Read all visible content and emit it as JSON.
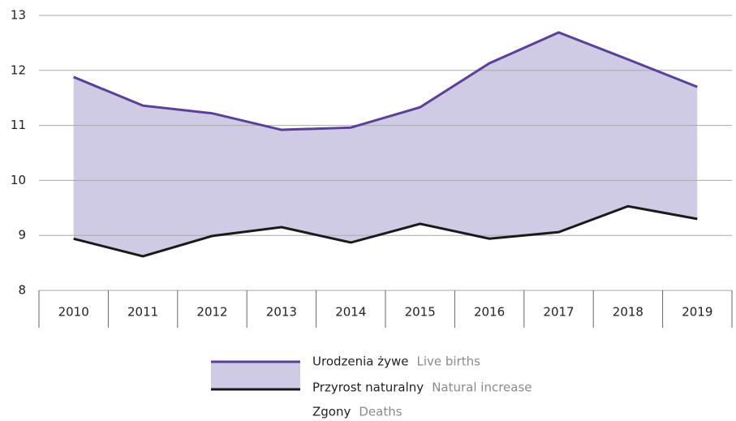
{
  "chart_data": {
    "type": "line",
    "categories": [
      "2010",
      "2011",
      "2012",
      "2013",
      "2014",
      "2015",
      "2016",
      "2017",
      "2018",
      "2019"
    ],
    "series": [
      {
        "name": "Urodzenia żywe",
        "name_en": "Live births",
        "color": "#5b3f99",
        "values": [
          11.88,
          11.36,
          11.22,
          10.92,
          10.96,
          11.33,
          12.13,
          12.69,
          12.2,
          11.7
        ]
      },
      {
        "name": "Zgony",
        "name_en": "Deaths",
        "color": "#1a1a1a",
        "values": [
          8.94,
          8.62,
          8.99,
          9.15,
          8.87,
          9.21,
          8.94,
          9.06,
          9.53,
          9.3
        ]
      }
    ],
    "area": {
      "name": "Przyrost naturalny",
      "name_en": "Natural increase",
      "color": "#d0cbe4"
    },
    "ylim": [
      8,
      13
    ],
    "yticks": [
      8,
      9,
      10,
      11,
      12,
      13
    ],
    "grid": true
  }
}
